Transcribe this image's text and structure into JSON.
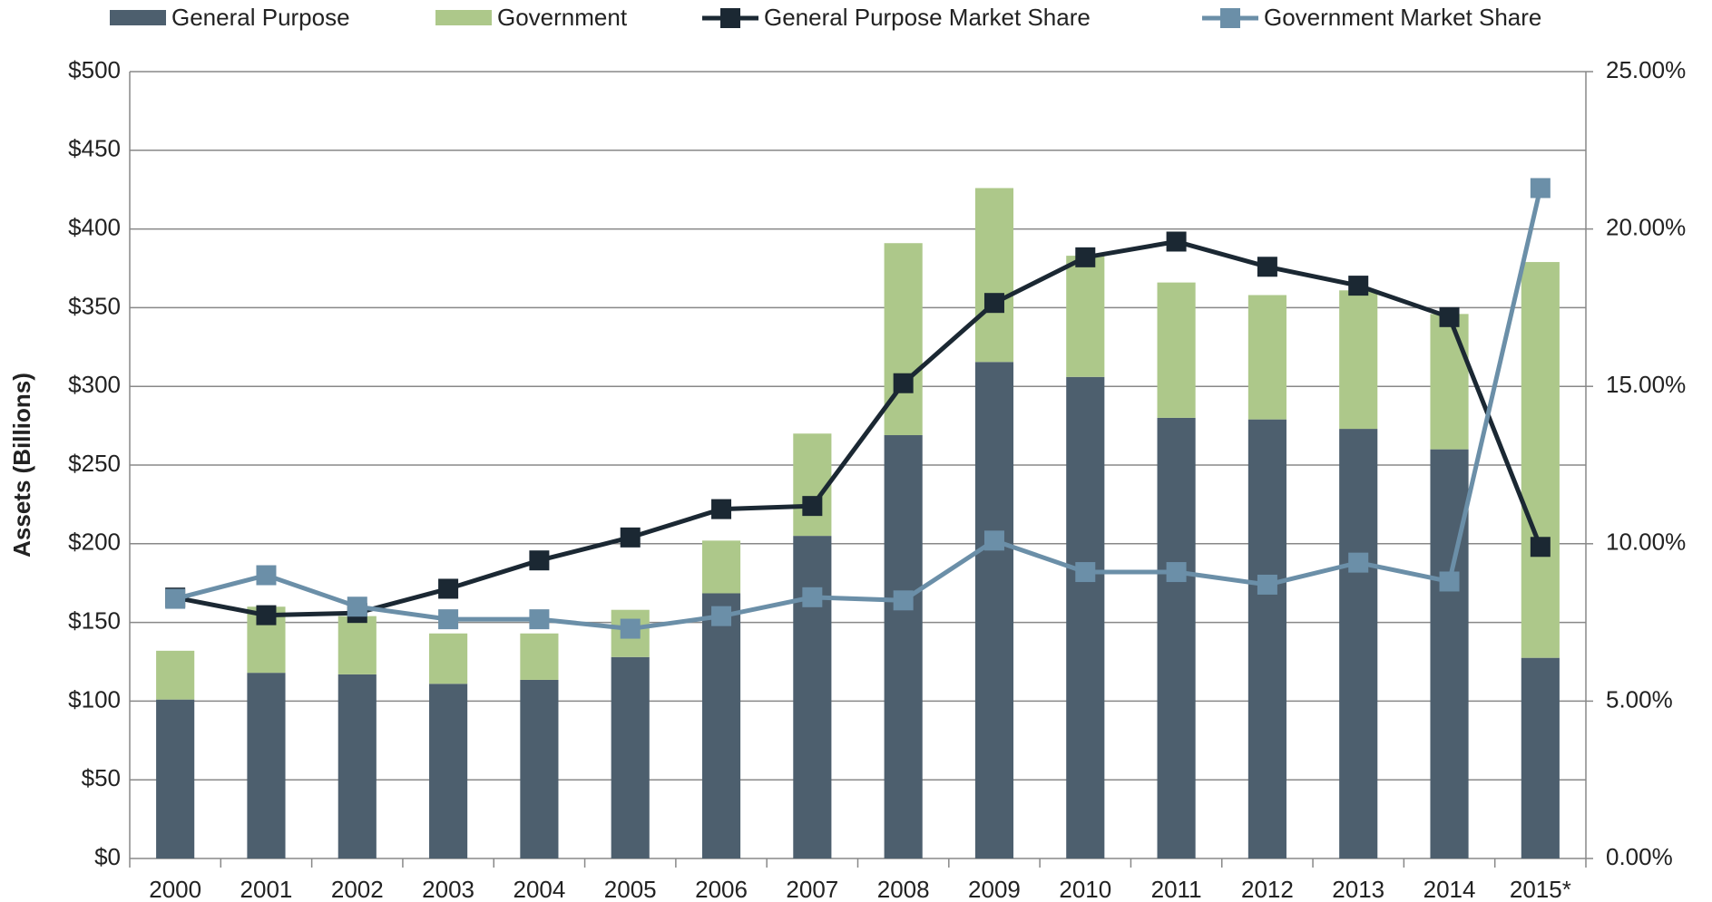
{
  "chart_data": {
    "type": "bar",
    "stacked": true,
    "y_axis_label": "Assets (Billions)",
    "categories": [
      "2000",
      "2001",
      "2002",
      "2003",
      "2004",
      "2005",
      "2006",
      "2007",
      "2008",
      "2009",
      "2010",
      "2011",
      "2012",
      "2013",
      "2014",
      "2015*"
    ],
    "series": [
      {
        "name": "General Purpose",
        "type": "bar",
        "color": "#4d5f6e",
        "values": [
          101,
          118,
          117,
          111,
          113.5,
          128,
          168.5,
          205,
          269,
          315.5,
          306,
          280,
          279,
          273,
          260,
          127.5
        ]
      },
      {
        "name": "Government",
        "type": "bar",
        "color": "#adc88a",
        "values": [
          31,
          42,
          37,
          32,
          29.5,
          30,
          33.5,
          65,
          122,
          110.5,
          77,
          86,
          79,
          88,
          86,
          251.5
        ]
      },
      {
        "name": "General Purpose Market Share",
        "type": "line",
        "axis": "y2",
        "color": "#1b2833",
        "values": [
          8.29,
          7.73,
          7.8,
          8.57,
          9.47,
          10.2,
          11.1,
          11.2,
          15.1,
          17.65,
          19.1,
          19.6,
          18.8,
          18.2,
          17.2,
          9.9
        ]
      },
      {
        "name": "Government Market Share",
        "type": "line",
        "axis": "y2",
        "color": "#6b8fa8",
        "values": [
          8.25,
          9.0,
          8.0,
          7.6,
          7.6,
          7.3,
          7.7,
          8.3,
          8.2,
          10.1,
          9.1,
          9.1,
          8.7,
          9.4,
          8.8,
          21.3
        ]
      }
    ],
    "ylim": [
      0,
      500
    ],
    "yticks": [
      {
        "value": 0,
        "label": "$0"
      },
      {
        "value": 50,
        "label": "$50"
      },
      {
        "value": 100,
        "label": "$100"
      },
      {
        "value": 150,
        "label": "$150"
      },
      {
        "value": 200,
        "label": "$200"
      },
      {
        "value": 250,
        "label": "$250"
      },
      {
        "value": 300,
        "label": "$300"
      },
      {
        "value": 350,
        "label": "$350"
      },
      {
        "value": 400,
        "label": "$400"
      },
      {
        "value": 450,
        "label": "$450"
      },
      {
        "value": 500,
        "label": "$500"
      }
    ],
    "y2lim": [
      0,
      25
    ],
    "y2ticks": [
      {
        "value": 0,
        "label": "0.00%"
      },
      {
        "value": 5,
        "label": "5.00%"
      },
      {
        "value": 10,
        "label": "10.00%"
      },
      {
        "value": 15,
        "label": "15.00%"
      },
      {
        "value": 20,
        "label": "20.00%"
      },
      {
        "value": 25,
        "label": "25.00%"
      }
    ],
    "grid": true,
    "legend": "top"
  }
}
